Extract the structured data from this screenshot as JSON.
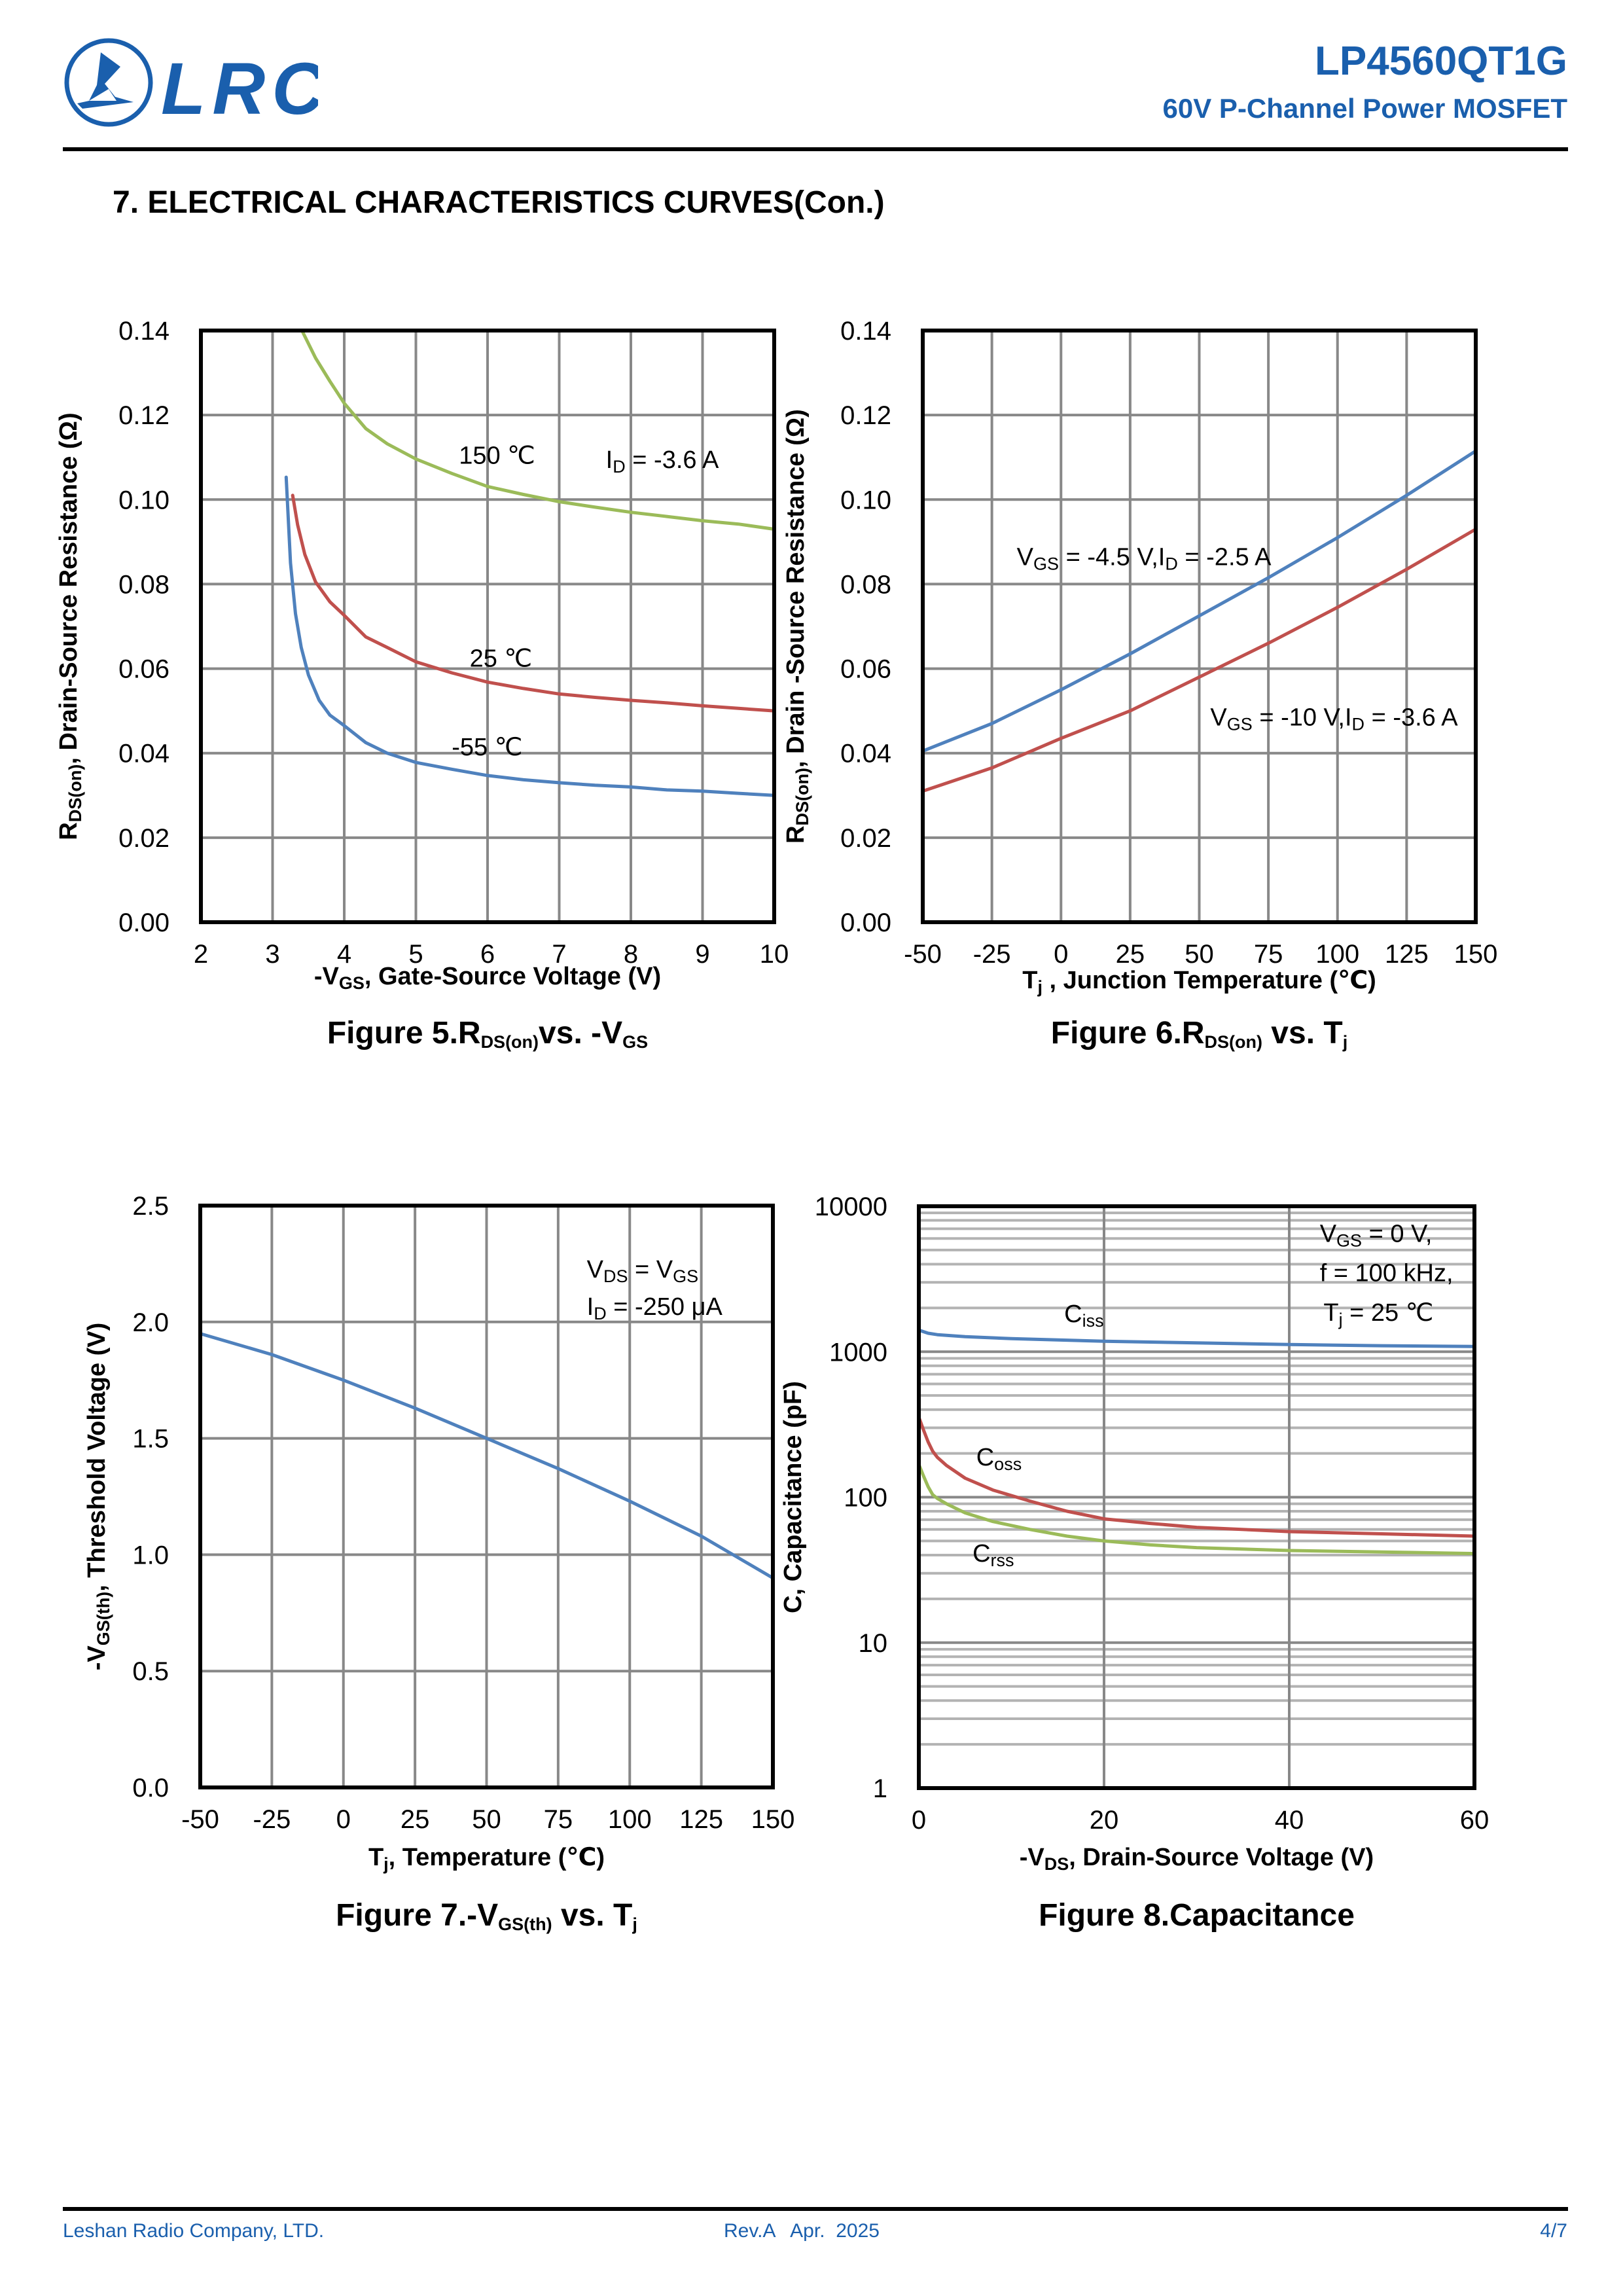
{
  "header": {
    "logo_text": "LRC",
    "part_number": "LP4560QT1G",
    "subtitle": "60V P-Channel Power MOSFET",
    "brand_color": "#1a5fad"
  },
  "section_title": "7. ELECTRICAL CHARACTERISTICS CURVES(Con.)",
  "footer": {
    "company": "Leshan Radio Company, LTD.",
    "revision": "Rev.A   Apr.  2025",
    "page": "4/7"
  },
  "chart_data": [
    {
      "id": "fig5",
      "type": "line",
      "title": "Figure 5.R_DS(on) vs. -V_GS",
      "caption_parts": [
        [
          "Figure 5.R",
          ""
        ],
        [
          "DS(on)",
          "sub"
        ],
        [
          "vs. -V",
          ""
        ],
        [
          "GS",
          "sub"
        ]
      ],
      "xlabel_parts": [
        [
          "-V",
          ""
        ],
        [
          "GS",
          "sub"
        ],
        [
          ", Gate-Source Voltage (V)",
          ""
        ]
      ],
      "ylabel_parts": [
        [
          "R",
          ""
        ],
        [
          "DS(on)",
          "sub"
        ],
        [
          ", Drain-Source Resistance (Ω)",
          ""
        ]
      ],
      "xlim": [
        2,
        10
      ],
      "ylim": [
        0,
        0.14
      ],
      "xticks": [
        2,
        3,
        4,
        5,
        6,
        7,
        8,
        9,
        10
      ],
      "xtick_labels": [
        "2",
        "3",
        "4",
        "5",
        "6",
        "7",
        "8",
        "9",
        "10"
      ],
      "yticks": [
        0,
        0.02,
        0.04,
        0.06,
        0.08,
        0.1,
        0.12,
        0.14
      ],
      "ytick_labels": [
        "0.00",
        "0.02",
        "0.04",
        "0.06",
        "0.08",
        "0.10",
        "0.12",
        "0.14"
      ],
      "grid": true,
      "series": [
        {
          "name": "150 ℃",
          "color": "#9bbb59",
          "x": [
            3.41,
            3.6,
            3.8,
            4.0,
            4.3,
            4.6,
            5.0,
            5.5,
            6.0,
            6.5,
            7.0,
            7.5,
            8.0,
            8.5,
            9.0,
            9.5,
            10.0
          ],
          "y": [
            0.14,
            0.1335,
            0.128,
            0.1228,
            0.1168,
            0.1132,
            0.1096,
            0.1062,
            0.1031,
            0.1012,
            0.0995,
            0.0982,
            0.097,
            0.096,
            0.095,
            0.0942,
            0.093
          ]
        },
        {
          "name": "25 ℃",
          "color": "#c0504d",
          "x": [
            3.28,
            3.35,
            3.45,
            3.6,
            3.8,
            4.0,
            4.3,
            4.6,
            5.0,
            5.5,
            6.0,
            6.5,
            7.0,
            7.5,
            8.0,
            8.5,
            9.0,
            9.5,
            10.0
          ],
          "y": [
            0.101,
            0.094,
            0.087,
            0.0805,
            0.0758,
            0.0726,
            0.0675,
            0.065,
            0.0616,
            0.059,
            0.0568,
            0.0553,
            0.054,
            0.0532,
            0.0525,
            0.0519,
            0.0512,
            0.0506,
            0.05
          ]
        },
        {
          "name": "-55 ℃",
          "color": "#4f81bd",
          "x": [
            3.19,
            3.25,
            3.32,
            3.4,
            3.5,
            3.65,
            3.8,
            4.0,
            4.3,
            4.6,
            5.0,
            5.5,
            6.0,
            6.5,
            7.0,
            7.5,
            8.0,
            8.5,
            9.0,
            9.5,
            10.0
          ],
          "y": [
            0.1053,
            0.085,
            0.073,
            0.065,
            0.0585,
            0.0525,
            0.049,
            0.0465,
            0.0425,
            0.04,
            0.0378,
            0.0362,
            0.0347,
            0.0337,
            0.033,
            0.0324,
            0.032,
            0.0313,
            0.031,
            0.0305,
            0.03
          ]
        }
      ],
      "annotations": [
        {
          "text_parts": [
            [
              "150 ℃",
              ""
            ]
          ],
          "x": 5.6,
          "y": 0.1085
        },
        {
          "text_parts": [
            [
              "I",
              ""
            ],
            [
              "D",
              "sub"
            ],
            [
              " = -3.6 A",
              ""
            ]
          ],
          "x": 7.65,
          "y": 0.1075
        },
        {
          "text_parts": [
            [
              "25 ℃",
              ""
            ]
          ],
          "x": 5.75,
          "y": 0.0605
        },
        {
          "text_parts": [
            [
              "-55 ℃",
              ""
            ]
          ],
          "x": 5.5,
          "y": 0.0395
        }
      ]
    },
    {
      "id": "fig6",
      "type": "line",
      "title": "Figure 6.R_DS(on) vs. T_j",
      "caption_parts": [
        [
          "Figure 6.R",
          ""
        ],
        [
          "DS(on)",
          "sub"
        ],
        [
          " vs. T",
          ""
        ],
        [
          "j",
          "sub"
        ]
      ],
      "xlabel_parts": [
        [
          "T",
          ""
        ],
        [
          "j",
          "sub"
        ],
        [
          " , Junction Temperature (℃)",
          ""
        ]
      ],
      "ylabel_parts": [
        [
          "R",
          ""
        ],
        [
          "DS(on)",
          "sub"
        ],
        [
          ", Drain -Source Resistance (Ω)",
          ""
        ]
      ],
      "xlim": [
        -50,
        150
      ],
      "ylim": [
        0,
        0.14
      ],
      "xticks": [
        -50,
        -25,
        0,
        25,
        50,
        75,
        100,
        125,
        150
      ],
      "xtick_labels": [
        "-50",
        "-25",
        "0",
        "25",
        "50",
        "75",
        "100",
        "125",
        "150"
      ],
      "yticks": [
        0,
        0.02,
        0.04,
        0.06,
        0.08,
        0.1,
        0.12,
        0.14
      ],
      "ytick_labels": [
        "0.00",
        "0.02",
        "0.04",
        "0.06",
        "0.08",
        "0.10",
        "0.12",
        "0.14"
      ],
      "grid": true,
      "series": [
        {
          "name": "VGS = -4.5 V, ID = -2.5 A",
          "color": "#4f81bd",
          "x": [
            -50,
            -25,
            0,
            25,
            50,
            75,
            100,
            125,
            150
          ],
          "y": [
            0.0405,
            0.047,
            0.055,
            0.0635,
            0.0725,
            0.0815,
            0.091,
            0.101,
            0.1115
          ]
        },
        {
          "name": "VGS = -10 V, ID = -3.6 A",
          "color": "#c0504d",
          "x": [
            -50,
            -25,
            0,
            25,
            50,
            75,
            100,
            125,
            150
          ],
          "y": [
            0.031,
            0.0365,
            0.0435,
            0.05,
            0.058,
            0.066,
            0.0745,
            0.0835,
            0.093
          ]
        }
      ],
      "annotations": [
        {
          "text_parts": [
            [
              "V",
              ""
            ],
            [
              "GS",
              "sub"
            ],
            [
              " = -4.5 V,I",
              ""
            ],
            [
              "D",
              "sub"
            ],
            [
              " = -2.5 A",
              ""
            ]
          ],
          "x": -16,
          "y": 0.0845
        },
        {
          "text_parts": [
            [
              "V",
              ""
            ],
            [
              "GS",
              "sub"
            ],
            [
              " = -10 V,I",
              ""
            ],
            [
              "D",
              "sub"
            ],
            [
              " = -3.6 A",
              ""
            ]
          ],
          "x": 54,
          "y": 0.0465
        }
      ]
    },
    {
      "id": "fig7",
      "type": "line",
      "title": "Figure 7.-V_GS(th) vs. T_j",
      "caption_parts": [
        [
          "Figure 7.-V",
          ""
        ],
        [
          "GS(th)",
          "sub"
        ],
        [
          " vs. T",
          ""
        ],
        [
          "j",
          "sub"
        ]
      ],
      "xlabel_parts": [
        [
          "T",
          ""
        ],
        [
          "j",
          "sub"
        ],
        [
          ", Temperature (℃)",
          ""
        ]
      ],
      "ylabel_parts": [
        [
          "-V",
          ""
        ],
        [
          "GS(th)",
          "sub"
        ],
        [
          ", Threshold Voltage (V)",
          ""
        ]
      ],
      "xlim": [
        -50,
        150
      ],
      "ylim": [
        0,
        2.5
      ],
      "xticks": [
        -50,
        -25,
        0,
        25,
        50,
        75,
        100,
        125,
        150
      ],
      "xtick_labels": [
        "-50",
        "-25",
        "0",
        "25",
        "50",
        "75",
        "100",
        "125",
        "150"
      ],
      "yticks": [
        0,
        0.5,
        1.0,
        1.5,
        2.0,
        2.5
      ],
      "ytick_labels": [
        "0.0",
        "0.5",
        "1.0",
        "1.5",
        "2.0",
        "2.5"
      ],
      "grid": true,
      "series": [
        {
          "name": "-VGS(th)",
          "color": "#4f81bd",
          "x": [
            -50,
            -25,
            0,
            25,
            50,
            75,
            100,
            125,
            150
          ],
          "y": [
            1.95,
            1.86,
            1.75,
            1.63,
            1.5,
            1.37,
            1.23,
            1.08,
            0.9
          ]
        }
      ],
      "annotations": [
        {
          "text_parts": [
            [
              "V",
              ""
            ],
            [
              "DS",
              "sub"
            ],
            [
              " = V",
              ""
            ],
            [
              "GS",
              "sub"
            ]
          ],
          "x": 85,
          "y": 2.19
        },
        {
          "text_parts": [
            [
              "I",
              ""
            ],
            [
              "D",
              "sub"
            ],
            [
              " = -250 μA",
              ""
            ]
          ],
          "x": 85,
          "y": 2.03
        }
      ]
    },
    {
      "id": "fig8",
      "type": "line",
      "yscale": "log",
      "title": "Figure 8.Capacitance",
      "caption_parts": [
        [
          "Figure 8.Capacitance",
          ""
        ]
      ],
      "xlabel_parts": [
        [
          "-V",
          ""
        ],
        [
          "DS",
          "sub"
        ],
        [
          ", Drain-Source Voltage (V)",
          ""
        ]
      ],
      "ylabel_parts": [
        [
          "C, Capacitance (pF)",
          ""
        ]
      ],
      "xlim": [
        0,
        60
      ],
      "ylim": [
        1,
        10000
      ],
      "xticks": [
        0,
        20,
        40,
        60
      ],
      "xtick_labels": [
        "0",
        "20",
        "40",
        "60"
      ],
      "yticks": [
        1,
        10,
        100,
        1000,
        10000
      ],
      "ytick_labels": [
        "1",
        "10",
        "100",
        "1000",
        "10000"
      ],
      "grid": true,
      "series": [
        {
          "name": "Ciss",
          "color": "#4f81bd",
          "x": [
            0,
            1,
            2,
            5,
            10,
            20,
            30,
            40,
            50,
            60
          ],
          "y": [
            1409,
            1340,
            1310,
            1270,
            1230,
            1181,
            1150,
            1120,
            1100,
            1087
          ]
        },
        {
          "name": "Coss",
          "color": "#c0504d",
          "x": [
            0,
            0.5,
            1,
            1.5,
            2,
            3,
            5,
            8,
            12,
            16,
            20,
            25,
            30,
            40,
            50,
            60
          ],
          "y": [
            355,
            290,
            240,
            207,
            188,
            165,
            135,
            112,
            94,
            80,
            71,
            66,
            62,
            58,
            56,
            54
          ]
        },
        {
          "name": "Crss",
          "color": "#9bbb59",
          "x": [
            0,
            0.5,
            1,
            1.5,
            2,
            3,
            5,
            8,
            12,
            16,
            20,
            25,
            30,
            40,
            50,
            60
          ],
          "y": [
            168,
            140,
            118,
            104,
            98,
            90,
            78,
            68,
            60,
            54,
            50,
            47,
            45,
            43,
            42,
            41
          ]
        }
      ],
      "annotations": [
        {
          "text_parts": [
            [
              "C",
              ""
            ],
            [
              "iss",
              "sub"
            ]
          ],
          "x": 15.7,
          "y": 1600
        },
        {
          "text_parts": [
            [
              "C",
              ""
            ],
            [
              "oss",
              "sub"
            ]
          ],
          "x": 6.2,
          "y": 165
        },
        {
          "text_parts": [
            [
              "C",
              ""
            ],
            [
              "rss",
              "sub"
            ]
          ],
          "x": 5.8,
          "y": 36
        },
        {
          "text_parts": [
            [
              "V",
              ""
            ],
            [
              "GS",
              "sub"
            ],
            [
              " = 0 V,",
              ""
            ]
          ],
          "x": 43.3,
          "y": 5700
        },
        {
          "text_parts": [
            [
              "f = 100 kHz,",
              ""
            ]
          ],
          "x": 43.3,
          "y": 3050
        },
        {
          "text_parts": [
            [
              "T",
              ""
            ],
            [
              "j",
              "sub"
            ],
            [
              " = 25 ℃",
              ""
            ]
          ],
          "x": 43.7,
          "y": 1630
        }
      ]
    }
  ]
}
